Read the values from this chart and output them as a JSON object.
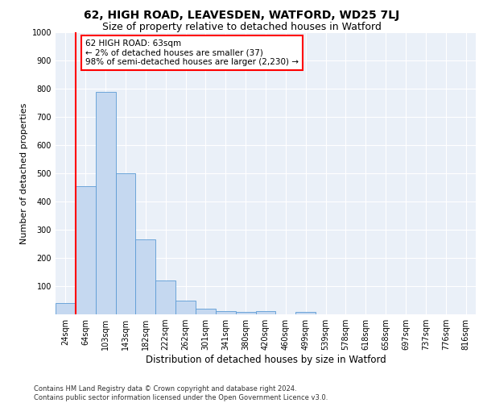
{
  "title1": "62, HIGH ROAD, LEAVESDEN, WATFORD, WD25 7LJ",
  "title2": "Size of property relative to detached houses in Watford",
  "xlabel": "Distribution of detached houses by size in Watford",
  "ylabel": "Number of detached properties",
  "footnote": "Contains HM Land Registry data © Crown copyright and database right 2024.\nContains public sector information licensed under the Open Government Licence v3.0.",
  "categories": [
    "24sqm",
    "64sqm",
    "103sqm",
    "143sqm",
    "182sqm",
    "222sqm",
    "262sqm",
    "301sqm",
    "341sqm",
    "380sqm",
    "420sqm",
    "460sqm",
    "499sqm",
    "539sqm",
    "578sqm",
    "618sqm",
    "658sqm",
    "697sqm",
    "737sqm",
    "776sqm",
    "816sqm"
  ],
  "bar_heights": [
    40,
    455,
    790,
    500,
    265,
    120,
    50,
    20,
    12,
    10,
    12,
    0,
    10,
    0,
    0,
    0,
    0,
    0,
    0,
    0,
    0
  ],
  "bar_color": "#c5d8f0",
  "bar_edge_color": "#5b9bd5",
  "bar_width": 1.0,
  "vline_x": 0.5,
  "vline_color": "red",
  "annotation_text": "62 HIGH ROAD: 63sqm\n← 2% of detached houses are smaller (37)\n98% of semi-detached houses are larger (2,230) →",
  "annotation_box_color": "white",
  "annotation_box_edge_color": "red",
  "ylim": [
    0,
    1000
  ],
  "yticks": [
    0,
    100,
    200,
    300,
    400,
    500,
    600,
    700,
    800,
    900,
    1000
  ],
  "bg_color": "#eaf0f8",
  "title1_fontsize": 10,
  "title2_fontsize": 9,
  "xlabel_fontsize": 8.5,
  "ylabel_fontsize": 8,
  "annotation_fontsize": 7.5,
  "tick_fontsize": 7,
  "footnote_fontsize": 6
}
